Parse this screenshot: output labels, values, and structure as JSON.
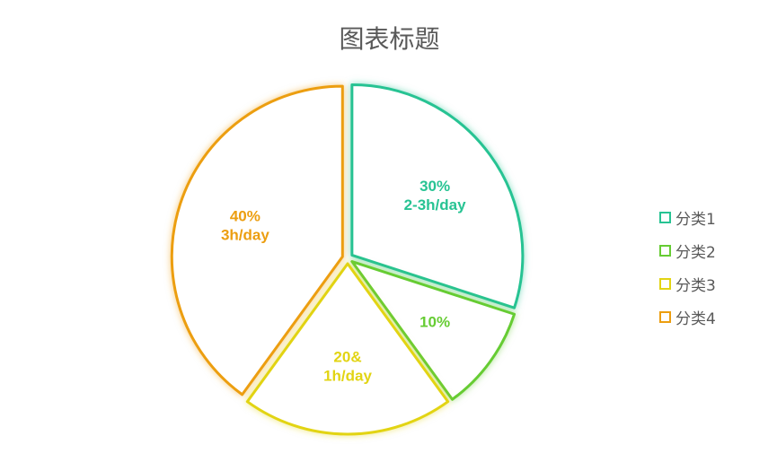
{
  "chart_data": {
    "type": "pie",
    "title": "图表标题",
    "categories": [
      "分类1",
      "分类2",
      "分类3",
      "分类4"
    ],
    "values": [
      30,
      10,
      20,
      40
    ],
    "slice_labels": [
      [
        "30%",
        "2-3h/day"
      ],
      [
        "10%"
      ],
      [
        "20&",
        "1h/day"
      ],
      [
        "40%",
        "3h/day"
      ]
    ],
    "colors": [
      "#27C393",
      "#66CC33",
      "#E2D413",
      "#EC9E10"
    ],
    "legend_position": "right",
    "exploded": true
  }
}
